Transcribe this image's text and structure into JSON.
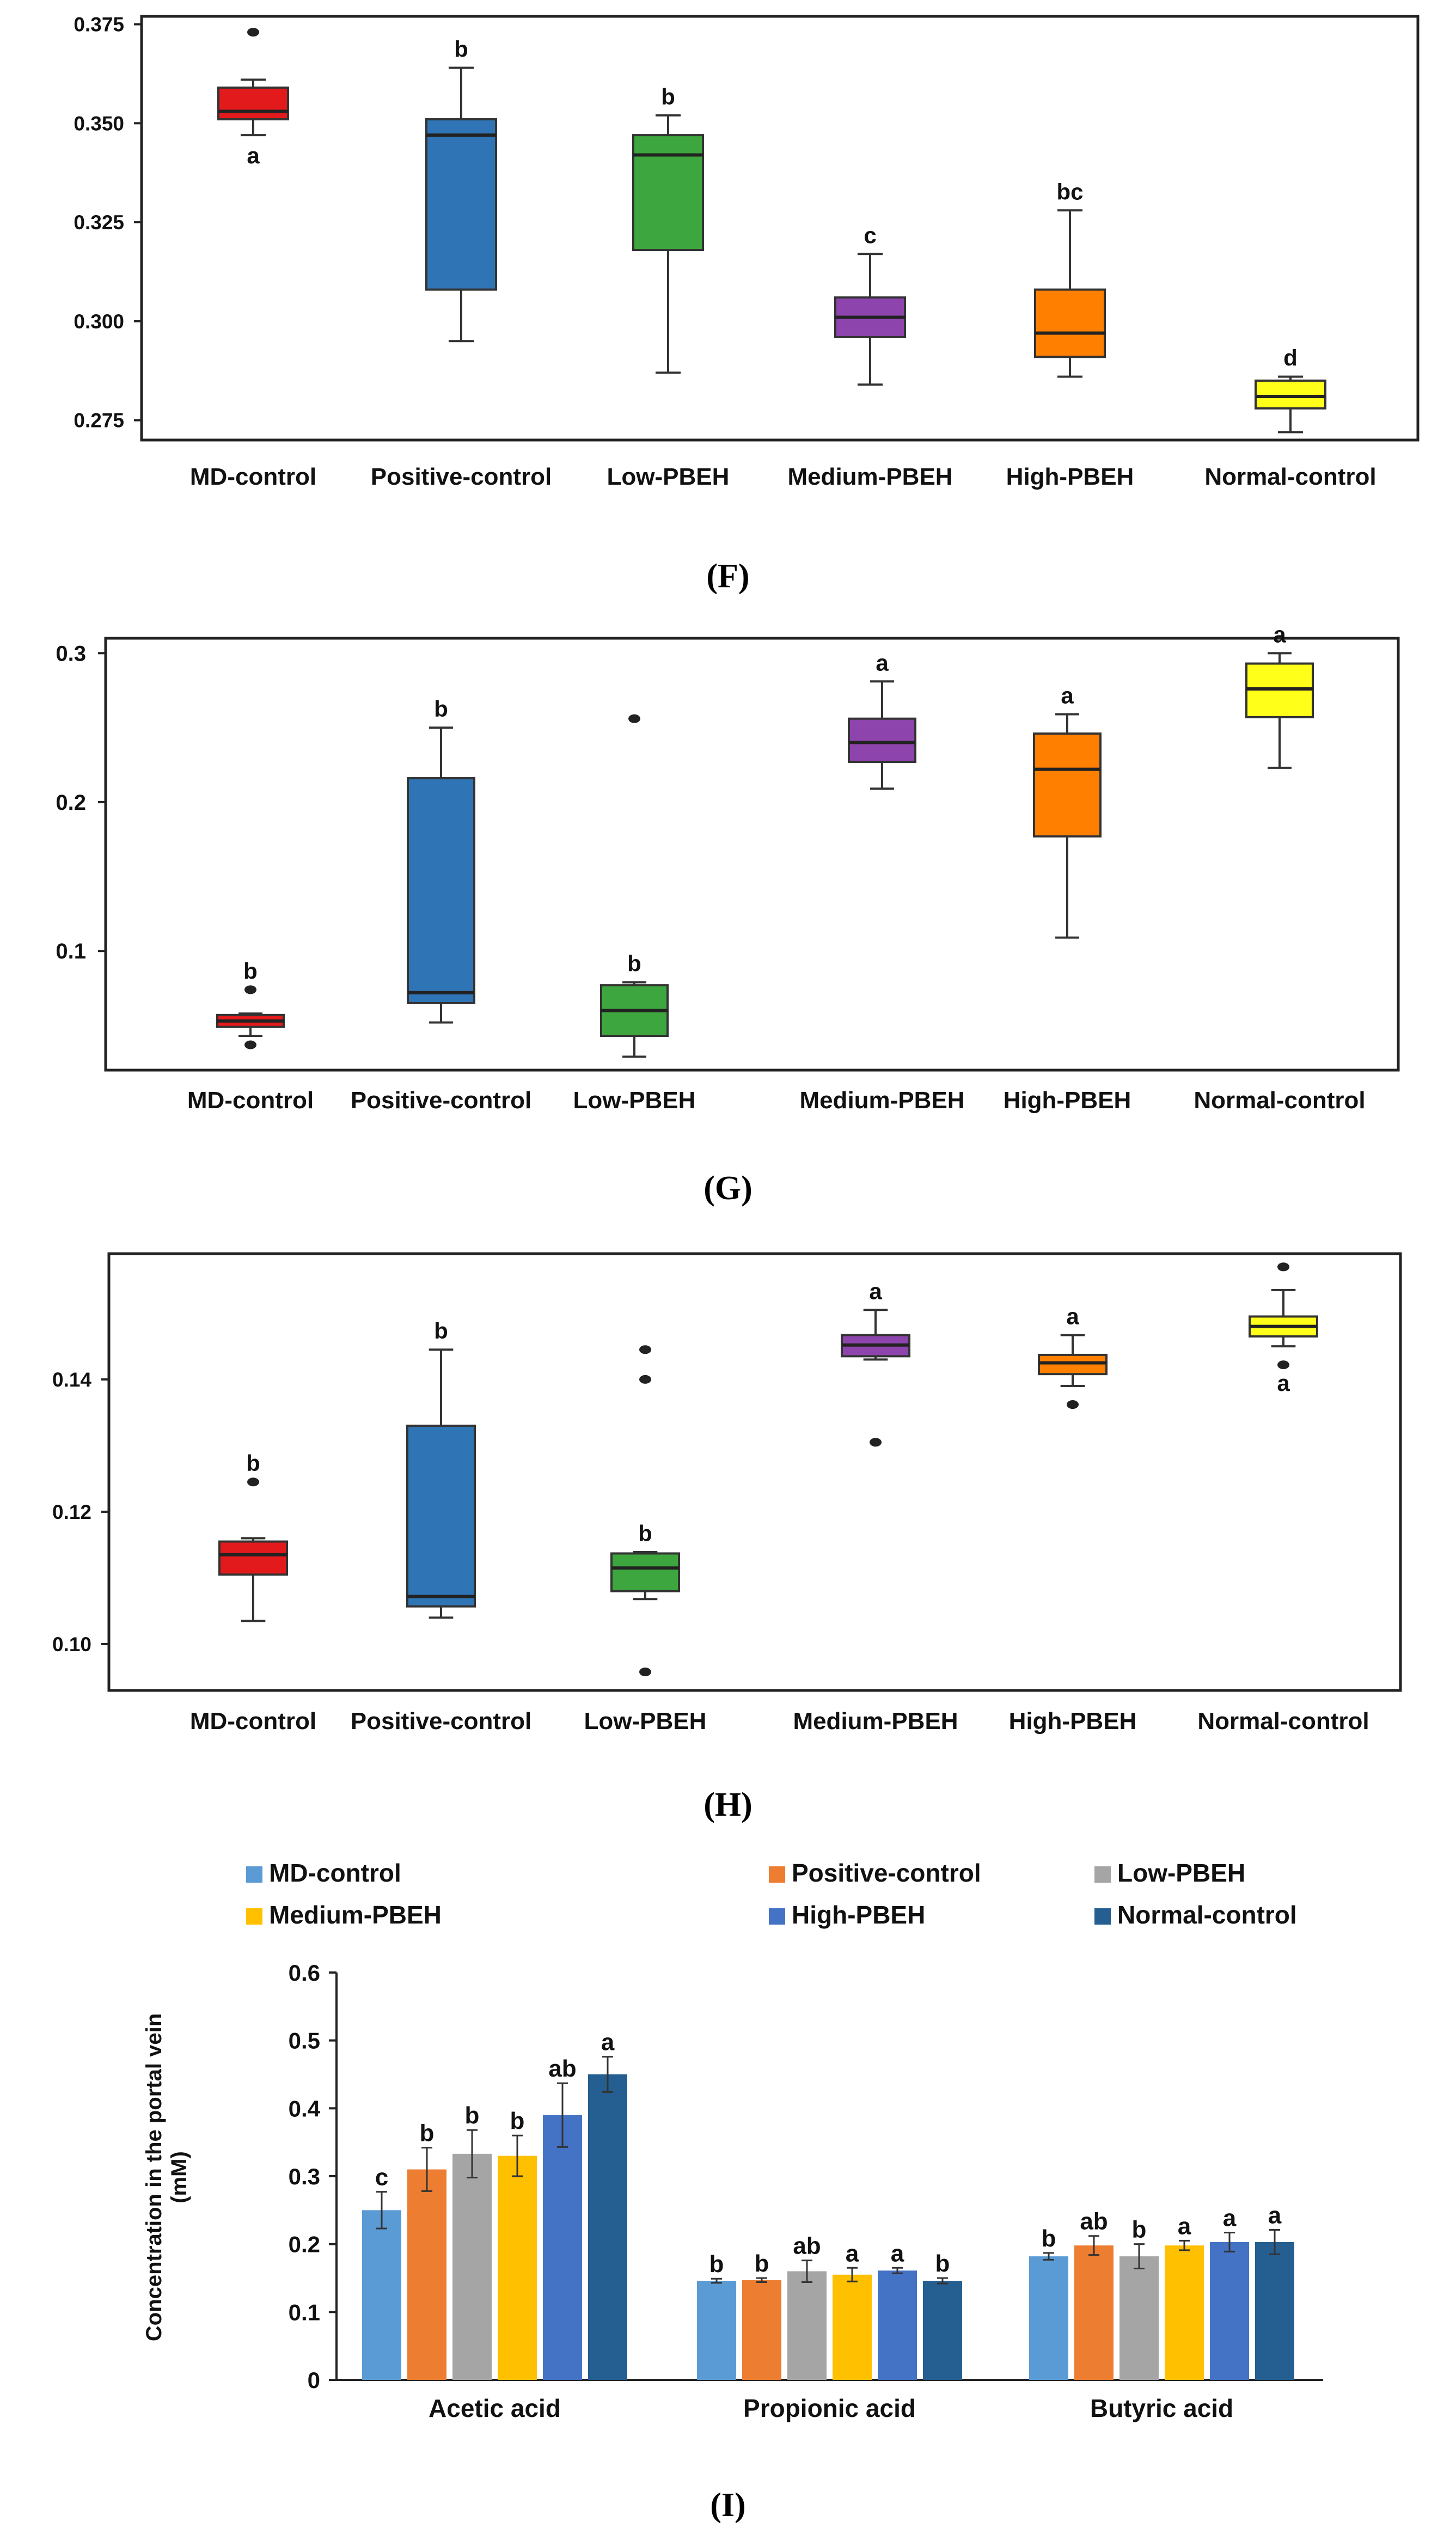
{
  "colors": {
    "groups": [
      "#e31a1c",
      "#2f75b5",
      "#3ea63e",
      "#8e44ad",
      "#ff8000",
      "#ffff1a"
    ],
    "bars": [
      "#5b9bd5",
      "#ed7d31",
      "#a5a5a5",
      "#ffc000",
      "#4472c4",
      "#255e91"
    ]
  },
  "chart_data": [
    {
      "type": "box",
      "caption": "(F)",
      "categories": [
        "MD-control",
        "Positive-control",
        "Low-PBEH",
        "Medium-PBEH",
        "High-PBEH",
        "Normal-control"
      ],
      "ylim": [
        0.27,
        0.377
      ],
      "yticks": [
        0.275,
        0.3,
        0.325,
        0.35,
        0.375
      ],
      "ytick_labels": [
        "0.275",
        "0.300",
        "0.325",
        "0.350",
        "0.375"
      ],
      "boxes": [
        {
          "min": 0.347,
          "q1": 0.351,
          "median": 0.353,
          "q3": 0.359,
          "max": 0.361,
          "outliers": [
            0.373
          ],
          "letter": "a",
          "letter_pos": "below"
        },
        {
          "min": 0.295,
          "q1": 0.308,
          "median": 0.347,
          "q3": 0.351,
          "max": 0.364,
          "outliers": [],
          "letter": "b",
          "letter_pos": "above"
        },
        {
          "min": 0.287,
          "q1": 0.318,
          "median": 0.342,
          "q3": 0.347,
          "max": 0.352,
          "outliers": [],
          "letter": "b",
          "letter_pos": "above"
        },
        {
          "min": 0.284,
          "q1": 0.296,
          "median": 0.301,
          "q3": 0.306,
          "max": 0.317,
          "outliers": [],
          "letter": "c",
          "letter_pos": "above"
        },
        {
          "min": 0.286,
          "q1": 0.291,
          "median": 0.297,
          "q3": 0.308,
          "max": 0.328,
          "outliers": [],
          "letter": "bc",
          "letter_pos": "above"
        },
        {
          "min": 0.272,
          "q1": 0.278,
          "median": 0.281,
          "q3": 0.285,
          "max": 0.286,
          "outliers": [],
          "letter": "d",
          "letter_pos": "above"
        }
      ]
    },
    {
      "type": "box",
      "caption": "(G)",
      "categories": [
        "MD-control",
        "Positive-control",
        "Low-PBEH",
        "Medium-PBEH",
        "High-PBEH",
        "Normal-control"
      ],
      "ylim": [
        0.02,
        0.31
      ],
      "yticks": [
        0.1,
        0.2,
        0.3
      ],
      "ytick_labels": [
        "0.1",
        "0.2",
        "0.3"
      ],
      "boxes": [
        {
          "min": 0.043,
          "q1": 0.049,
          "median": 0.053,
          "q3": 0.057,
          "max": 0.058,
          "outliers": [
            0.037,
            0.074
          ],
          "letter": "b",
          "letter_pos": "above"
        },
        {
          "min": 0.052,
          "q1": 0.065,
          "median": 0.072,
          "q3": 0.216,
          "max": 0.25,
          "outliers": [],
          "letter": "b",
          "letter_pos": "above"
        },
        {
          "min": 0.029,
          "q1": 0.043,
          "median": 0.06,
          "q3": 0.077,
          "max": 0.079,
          "outliers": [
            0.256
          ],
          "letter": "b",
          "letter_pos": "above"
        },
        {
          "min": 0.209,
          "q1": 0.227,
          "median": 0.24,
          "q3": 0.256,
          "max": 0.281,
          "outliers": [],
          "letter": "a",
          "letter_pos": "above"
        },
        {
          "min": 0.109,
          "q1": 0.177,
          "median": 0.222,
          "q3": 0.246,
          "max": 0.259,
          "outliers": [],
          "letter": "a",
          "letter_pos": "above"
        },
        {
          "min": 0.223,
          "q1": 0.257,
          "median": 0.276,
          "q3": 0.293,
          "max": 0.3,
          "outliers": [],
          "letter": "a",
          "letter_pos": "above"
        }
      ]
    },
    {
      "type": "box",
      "caption": "(H)",
      "categories": [
        "MD-control",
        "Positive-control",
        "Low-PBEH",
        "Medium-PBEH",
        "High-PBEH",
        "Normal-control"
      ],
      "ylim": [
        0.093,
        0.159
      ],
      "yticks": [
        0.1,
        0.12,
        0.14
      ],
      "ytick_labels": [
        "0.10",
        "0.12",
        "0.14"
      ],
      "boxes": [
        {
          "min": 0.1035,
          "q1": 0.1105,
          "median": 0.1135,
          "q3": 0.1155,
          "max": 0.116,
          "outliers": [
            0.1245
          ],
          "letter": "b",
          "letter_pos": "above"
        },
        {
          "min": 0.104,
          "q1": 0.1057,
          "median": 0.1072,
          "q3": 0.133,
          "max": 0.1445,
          "outliers": [],
          "letter": "b",
          "letter_pos": "above"
        },
        {
          "min": 0.1068,
          "q1": 0.108,
          "median": 0.1115,
          "q3": 0.1137,
          "max": 0.1139,
          "outliers": [
            0.0958,
            0.14,
            0.1445
          ],
          "letter": "b",
          "letter_pos": "above"
        },
        {
          "min": 0.143,
          "q1": 0.1435,
          "median": 0.1452,
          "q3": 0.1467,
          "max": 0.1505,
          "outliers": [
            0.1305
          ],
          "letter": "a",
          "letter_pos": "above"
        },
        {
          "min": 0.139,
          "q1": 0.1408,
          "median": 0.1425,
          "q3": 0.1437,
          "max": 0.1467,
          "outliers": [
            0.1362
          ],
          "letter": "a",
          "letter_pos": "above"
        },
        {
          "min": 0.145,
          "q1": 0.1465,
          "median": 0.148,
          "q3": 0.1495,
          "max": 0.1535,
          "outliers": [
            0.1422,
            0.157
          ],
          "letter": "a",
          "letter_pos": "below"
        }
      ]
    },
    {
      "type": "bar",
      "caption": "(I)",
      "categories": [
        "Acetic acid",
        "Propionic acid",
        "Butyric acid"
      ],
      "ylabel": "Concentration in the portal vein (mM)",
      "ylabel_lines": [
        "Concentration in the portal vein",
        "(mM)"
      ],
      "ylim": [
        0,
        0.6
      ],
      "yticks": [
        0,
        0.1,
        0.2,
        0.3,
        0.4,
        0.5,
        0.6
      ],
      "ytick_labels": [
        "0",
        "0.1",
        "0.2",
        "0.3",
        "0.4",
        "0.5",
        "0.6"
      ],
      "legend": [
        "MD-control",
        "Positive-control",
        "Low-PBEH",
        "Medium-PBEH",
        "High-PBEH",
        "Normal-control"
      ],
      "series": [
        {
          "name": "MD-control",
          "values": [
            0.25,
            0.146,
            0.182
          ],
          "errors": [
            0.027,
            0.003,
            0.005
          ],
          "letters": [
            "c",
            "b",
            "b"
          ]
        },
        {
          "name": "Positive-control",
          "values": [
            0.31,
            0.147,
            0.198
          ],
          "errors": [
            0.032,
            0.003,
            0.014
          ],
          "letters": [
            "b",
            "b",
            "ab"
          ]
        },
        {
          "name": "Low-PBEH",
          "values": [
            0.333,
            0.16,
            0.182
          ],
          "errors": [
            0.035,
            0.016,
            0.018
          ],
          "letters": [
            "b",
            "ab",
            "b"
          ]
        },
        {
          "name": "Medium-PBEH",
          "values": [
            0.33,
            0.155,
            0.198
          ],
          "errors": [
            0.03,
            0.01,
            0.007
          ],
          "letters": [
            "b",
            "a",
            "a"
          ]
        },
        {
          "name": "High-PBEH",
          "values": [
            0.39,
            0.161,
            0.203
          ],
          "errors": [
            0.047,
            0.004,
            0.014
          ],
          "letters": [
            "ab",
            "a",
            "a"
          ]
        },
        {
          "name": "Normal-control",
          "values": [
            0.45,
            0.146,
            0.203
          ],
          "errors": [
            0.026,
            0.004,
            0.018
          ],
          "letters": [
            "a",
            "b",
            "a"
          ]
        }
      ]
    }
  ]
}
